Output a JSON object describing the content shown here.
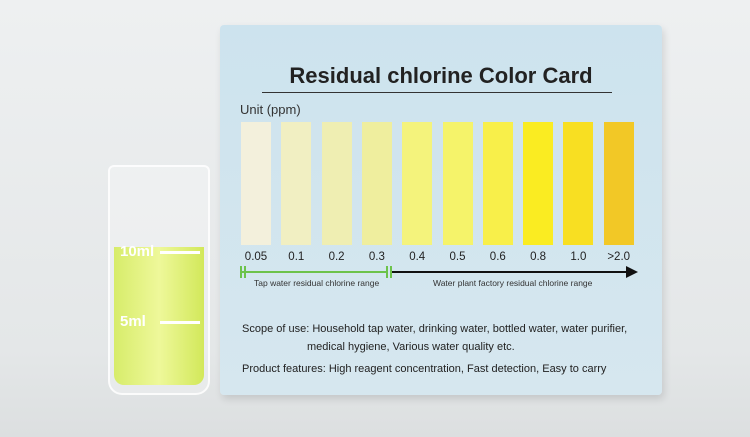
{
  "card": {
    "title": "Residual chlorine Color Card",
    "unit_label": "Unit (ppm)",
    "swatches": [
      {
        "label": "0.05",
        "color": "#f3f0dc"
      },
      {
        "label": "0.1",
        "color": "#f1efc2"
      },
      {
        "label": "0.2",
        "color": "#efeeb2"
      },
      {
        "label": "0.3",
        "color": "#efee9e"
      },
      {
        "label": "0.4",
        "color": "#f4f37c"
      },
      {
        "label": "0.5",
        "color": "#f5f36a"
      },
      {
        "label": "0.6",
        "color": "#f8ef4a"
      },
      {
        "label": "0.8",
        "color": "#faec22"
      },
      {
        "label": "1.0",
        "color": "#f8df22"
      },
      {
        "label": ">2.0",
        "color": "#f2c826"
      }
    ],
    "tap_range": "Tap water residual chlorine range",
    "plant_range": "Water plant factory residual chlorine range",
    "scope_line1": "Scope of use: Household tap water, drinking water, bottled water, water purifier,",
    "scope_line2": "medical hygiene, Various water quality etc.",
    "features": "Product features: High reagent concentration, Fast detection,  Easy to carry"
  },
  "vial": {
    "mark_10": "10ml",
    "mark_5": "5ml",
    "liquid_color": "#e3f27c"
  }
}
